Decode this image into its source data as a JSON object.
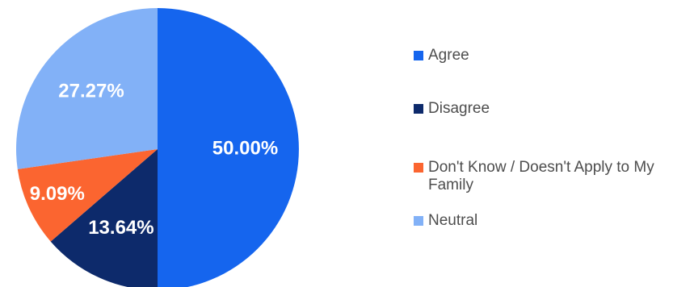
{
  "chart_data": {
    "type": "pie",
    "title": "",
    "slices": [
      {
        "label": "Agree",
        "value": 50.0,
        "display": "50.00%",
        "color": "#1565ee"
      },
      {
        "label": "Disagree",
        "value": 13.64,
        "display": "13.64%",
        "color": "#0d2a6b"
      },
      {
        "label": "Don't Know / Doesn't Apply to My Family",
        "value": 9.09,
        "display": "9.09%",
        "color": "#fb6530"
      },
      {
        "label": "Neutral",
        "value": 27.27,
        "display": "27.27%",
        "color": "#82b1f7"
      }
    ],
    "legend": {
      "placement": "right"
    },
    "start_angle": "12 o'clock",
    "direction": "clockwise"
  }
}
